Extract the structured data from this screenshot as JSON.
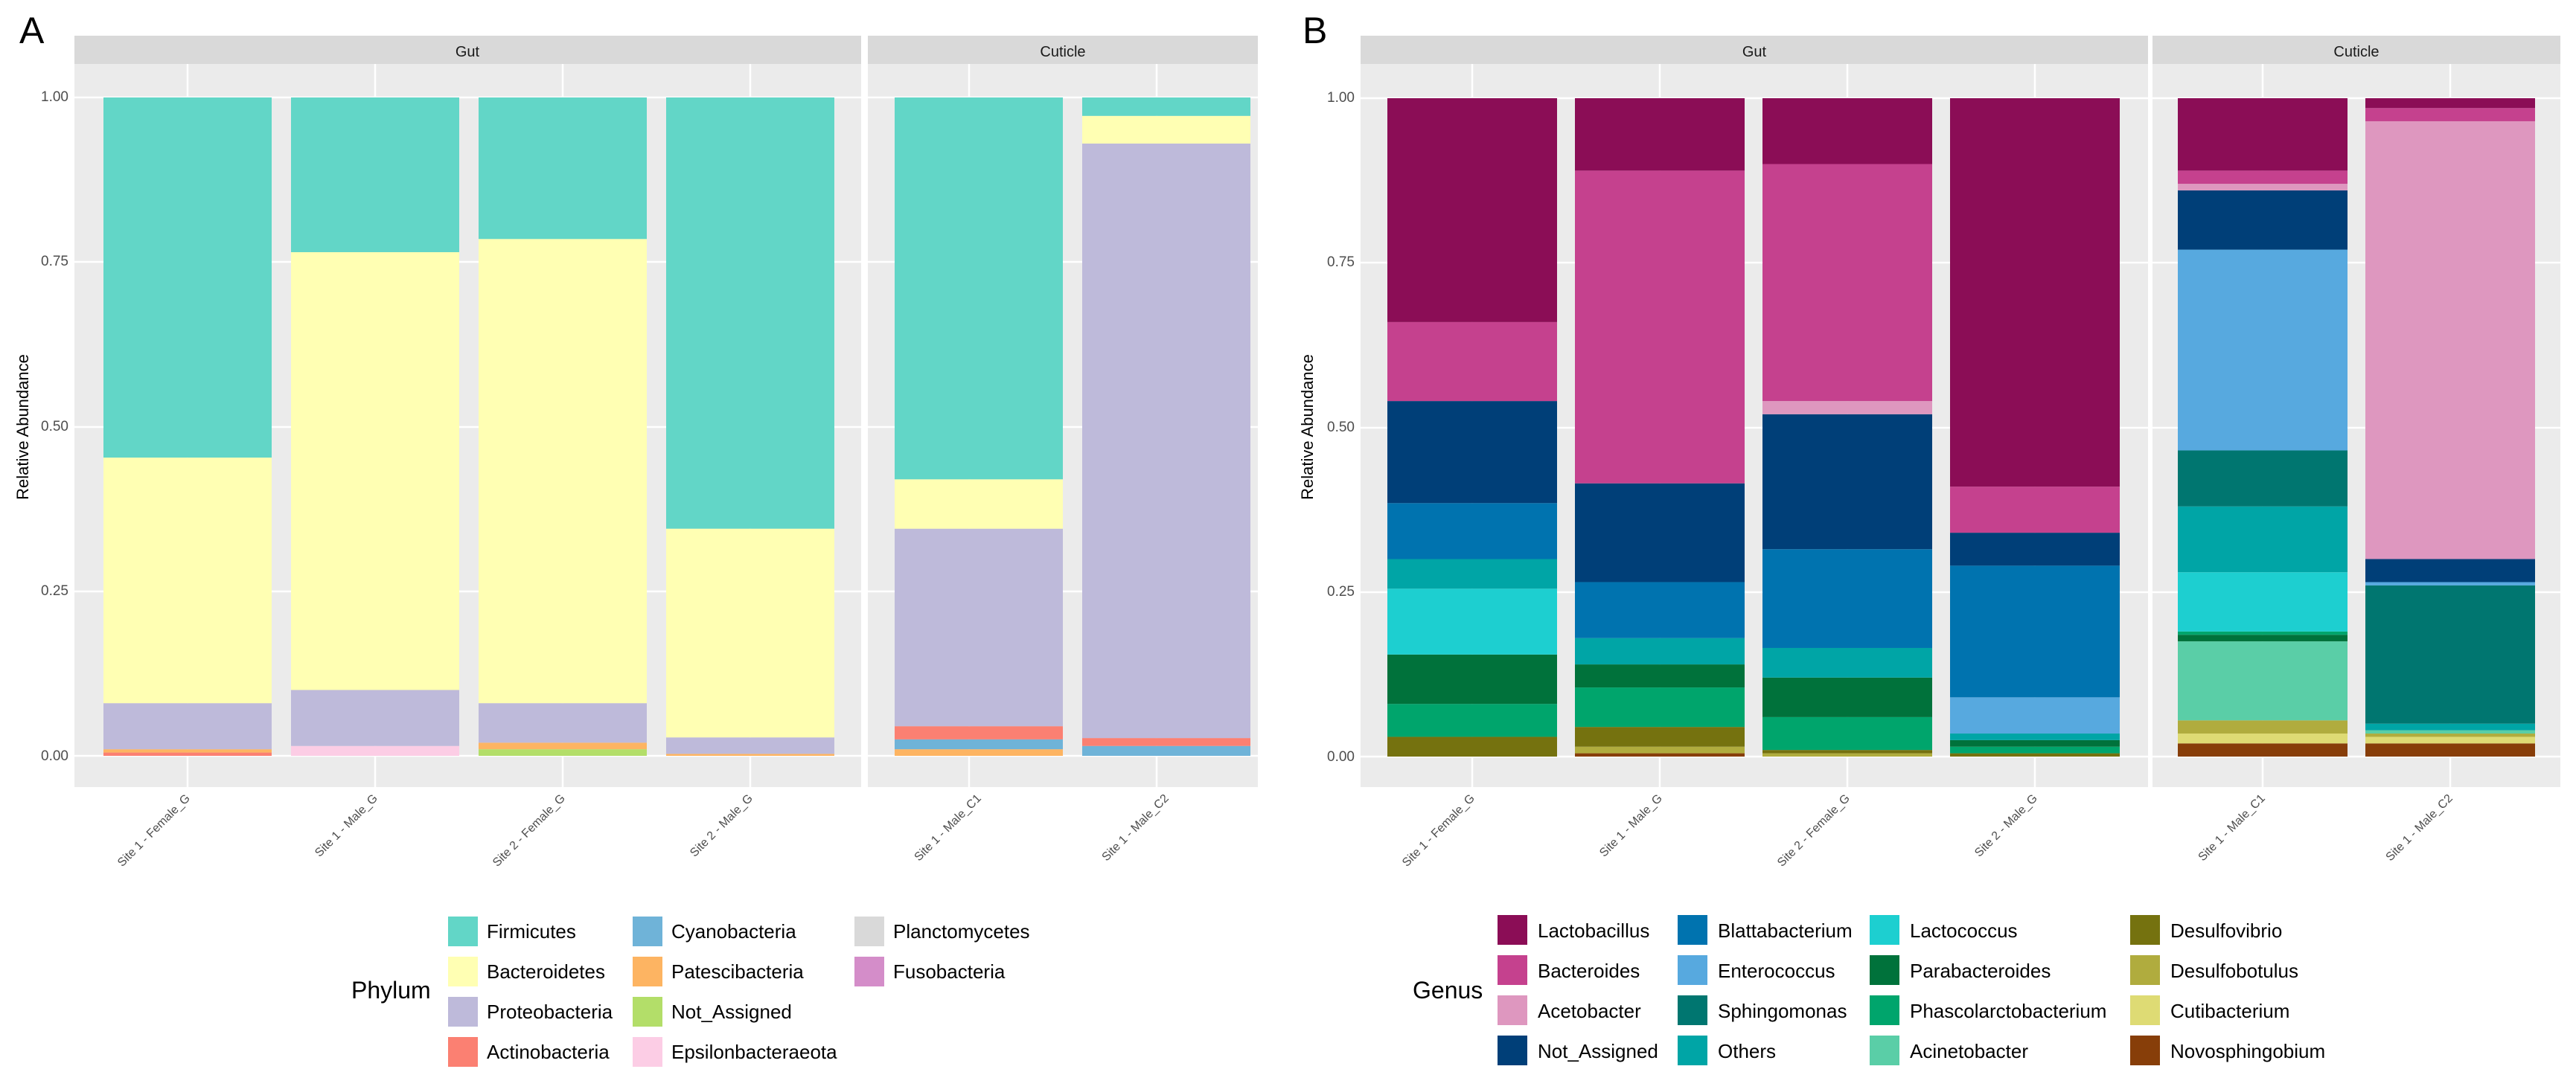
{
  "chart_data": [
    {
      "type": "bar",
      "stacked": true,
      "panel_label": "A",
      "ylabel": "Relative Abundance",
      "ylim": [
        0,
        1
      ],
      "yticks": [
        "0.00",
        "0.25",
        "0.50",
        "0.75",
        "1.00"
      ],
      "ytick_values": [
        0,
        0.25,
        0.5,
        0.75,
        1
      ],
      "legend_title": "Phylum",
      "legend": [
        "Firmicutes",
        "Bacteroidetes",
        "Proteobacteria",
        "Actinobacteria",
        "Cyanobacteria",
        "Patescibacteria",
        "Not_Assigned",
        "Epsilonbacteraeota",
        "Planctomycetes",
        "Fusobacteria"
      ],
      "colors": {
        "Firmicutes": "#62D6C7",
        "Bacteroidetes": "#FFFFB3",
        "Proteobacteria": "#BEBADA",
        "Actinobacteria": "#FB8072",
        "Cyanobacteria": "#6FB3D8",
        "Patescibacteria": "#FDB462",
        "Not_Assigned": "#B3DE69",
        "Epsilonbacteraeota": "#FCCDE5",
        "Planctomycetes": "#D9D9D9",
        "Fusobacteria": "#D48DC9"
      },
      "facets": [
        {
          "label": "Gut",
          "bars": [
            {
              "label": "Site 1 - Female_G",
              "segments": [
                {
                  "name": "Actinobacteria",
                  "value": 0.005
                },
                {
                  "name": "Patescibacteria",
                  "value": 0.005
                },
                {
                  "name": "Proteobacteria",
                  "value": 0.07
                },
                {
                  "name": "Bacteroidetes",
                  "value": 0.373
                },
                {
                  "name": "Firmicutes",
                  "value": 0.547
                }
              ]
            },
            {
              "label": "Site 1 - Male_G",
              "segments": [
                {
                  "name": "Epsilonbacteraeota",
                  "value": 0.015
                },
                {
                  "name": "Proteobacteria",
                  "value": 0.085
                },
                {
                  "name": "Bacteroidetes",
                  "value": 0.665
                },
                {
                  "name": "Firmicutes",
                  "value": 0.235
                }
              ]
            },
            {
              "label": "Site 2 - Female_G",
              "segments": [
                {
                  "name": "Not_Assigned",
                  "value": 0.01
                },
                {
                  "name": "Patescibacteria",
                  "value": 0.01
                },
                {
                  "name": "Proteobacteria",
                  "value": 0.06
                },
                {
                  "name": "Bacteroidetes",
                  "value": 0.705
                },
                {
                  "name": "Firmicutes",
                  "value": 0.215
                }
              ]
            },
            {
              "label": "Site 2 - Male_G",
              "segments": [
                {
                  "name": "Patescibacteria",
                  "value": 0.003
                },
                {
                  "name": "Proteobacteria",
                  "value": 0.025
                },
                {
                  "name": "Bacteroidetes",
                  "value": 0.317
                },
                {
                  "name": "Firmicutes",
                  "value": 0.655
                }
              ]
            }
          ]
        },
        {
          "label": "Cuticle",
          "bars": [
            {
              "label": "Site 1 - Male_C1",
              "segments": [
                {
                  "name": "Patescibacteria",
                  "value": 0.01
                },
                {
                  "name": "Cyanobacteria",
                  "value": 0.015
                },
                {
                  "name": "Actinobacteria",
                  "value": 0.02
                },
                {
                  "name": "Proteobacteria",
                  "value": 0.3
                },
                {
                  "name": "Bacteroidetes",
                  "value": 0.075
                },
                {
                  "name": "Firmicutes",
                  "value": 0.58
                }
              ]
            },
            {
              "label": "Site 1 - Male_C2",
              "segments": [
                {
                  "name": "Cyanobacteria",
                  "value": 0.015
                },
                {
                  "name": "Actinobacteria",
                  "value": 0.012
                },
                {
                  "name": "Proteobacteria",
                  "value": 0.903
                },
                {
                  "name": "Bacteroidetes",
                  "value": 0.042
                },
                {
                  "name": "Firmicutes",
                  "value": 0.028
                }
              ]
            }
          ]
        }
      ]
    },
    {
      "type": "bar",
      "stacked": true,
      "panel_label": "B",
      "ylabel": "Relative Abundance",
      "ylim": [
        0,
        1
      ],
      "yticks": [
        "0.00",
        "0.25",
        "0.50",
        "0.75",
        "1.00"
      ],
      "ytick_values": [
        0,
        0.25,
        0.5,
        0.75,
        1
      ],
      "legend_title": "Genus",
      "legend": [
        "Lactobacillus",
        "Bacteroides",
        "Acetobacter",
        "Not_Assigned",
        "Blattabacterium",
        "Enterococcus",
        "Sphingomonas",
        "Others",
        "Lactococcus",
        "Parabacteroides",
        "Phascolarctobacterium",
        "Acinetobacter",
        "Desulfovibrio",
        "Desulfobotulus",
        "Cutibacterium",
        "Novosphingobium"
      ],
      "colors": {
        "Lactobacillus": "#8B0D56",
        "Bacteroides": "#C5418E",
        "Acetobacter": "#DE97BF",
        "Not_Assigned": "#003F78",
        "Blattabacterium": "#0073AF",
        "Enterococcus": "#57A9DF",
        "Sphingomonas": "#007670",
        "Others": "#00A5A6",
        "Lactococcus": "#1DCFD0",
        "Parabacteroides": "#00723B",
        "Phascolarctobacterium": "#00A56C",
        "Acinetobacter": "#5ACEA7",
        "Desulfovibrio": "#75720F",
        "Desulfobotulus": "#B0AC3E",
        "Cutibacterium": "#DEDB74",
        "Novosphingobium": "#873E09"
      },
      "facets": [
        {
          "label": "Gut",
          "bars": [
            {
              "label": "Site 1 - Female_G",
              "segments": [
                {
                  "name": "Desulfovibrio",
                  "value": 0.03
                },
                {
                  "name": "Phascolarctobacterium",
                  "value": 0.05
                },
                {
                  "name": "Parabacteroides",
                  "value": 0.075
                },
                {
                  "name": "Lactococcus",
                  "value": 0.1
                },
                {
                  "name": "Others",
                  "value": 0.045
                },
                {
                  "name": "Blattabacterium",
                  "value": 0.085
                },
                {
                  "name": "Not_Assigned",
                  "value": 0.155
                },
                {
                  "name": "Bacteroides",
                  "value": 0.12
                },
                {
                  "name": "Lactobacillus",
                  "value": 0.34
                }
              ]
            },
            {
              "label": "Site 1 - Male_G",
              "segments": [
                {
                  "name": "Novosphingobium",
                  "value": 0.005
                },
                {
                  "name": "Desulfobotulus",
                  "value": 0.01
                },
                {
                  "name": "Desulfovibrio",
                  "value": 0.03
                },
                {
                  "name": "Phascolarctobacterium",
                  "value": 0.06
                },
                {
                  "name": "Parabacteroides",
                  "value": 0.035
                },
                {
                  "name": "Others",
                  "value": 0.04
                },
                {
                  "name": "Blattabacterium",
                  "value": 0.085
                },
                {
                  "name": "Not_Assigned",
                  "value": 0.15
                },
                {
                  "name": "Bacteroides",
                  "value": 0.475
                },
                {
                  "name": "Lactobacillus",
                  "value": 0.11
                }
              ]
            },
            {
              "label": "Site 2 - Female_G",
              "segments": [
                {
                  "name": "Desulfobotulus",
                  "value": 0.005
                },
                {
                  "name": "Desulfovibrio",
                  "value": 0.005
                },
                {
                  "name": "Phascolarctobacterium",
                  "value": 0.05
                },
                {
                  "name": "Parabacteroides",
                  "value": 0.06
                },
                {
                  "name": "Others",
                  "value": 0.045
                },
                {
                  "name": "Blattabacterium",
                  "value": 0.15
                },
                {
                  "name": "Not_Assigned",
                  "value": 0.205
                },
                {
                  "name": "Acetobacter",
                  "value": 0.02
                },
                {
                  "name": "Bacteroides",
                  "value": 0.36
                },
                {
                  "name": "Lactobacillus",
                  "value": 0.1
                }
              ]
            },
            {
              "label": "Site 2 - Male_G",
              "segments": [
                {
                  "name": "Desulfovibrio",
                  "value": 0.005
                },
                {
                  "name": "Phascolarctobacterium",
                  "value": 0.01
                },
                {
                  "name": "Parabacteroides",
                  "value": 0.01
                },
                {
                  "name": "Others",
                  "value": 0.01
                },
                {
                  "name": "Enterococcus",
                  "value": 0.055
                },
                {
                  "name": "Blattabacterium",
                  "value": 0.2
                },
                {
                  "name": "Not_Assigned",
                  "value": 0.05
                },
                {
                  "name": "Bacteroides",
                  "value": 0.07
                },
                {
                  "name": "Lactobacillus",
                  "value": 0.59
                }
              ]
            }
          ]
        },
        {
          "label": "Cuticle",
          "bars": [
            {
              "label": "Site 1 - Male_C1",
              "segments": [
                {
                  "name": "Novosphingobium",
                  "value": 0.02
                },
                {
                  "name": "Cutibacterium",
                  "value": 0.015
                },
                {
                  "name": "Desulfobotulus",
                  "value": 0.02
                },
                {
                  "name": "Acinetobacter",
                  "value": 0.12
                },
                {
                  "name": "Parabacteroides",
                  "value": 0.01
                },
                {
                  "name": "Phascolarctobacterium",
                  "value": 0.005
                },
                {
                  "name": "Lactococcus",
                  "value": 0.09
                },
                {
                  "name": "Others",
                  "value": 0.1
                },
                {
                  "name": "Sphingomonas",
                  "value": 0.085
                },
                {
                  "name": "Enterococcus",
                  "value": 0.305
                },
                {
                  "name": "Not_Assigned",
                  "value": 0.09
                },
                {
                  "name": "Acetobacter",
                  "value": 0.01
                },
                {
                  "name": "Bacteroides",
                  "value": 0.02
                },
                {
                  "name": "Lactobacillus",
                  "value": 0.11
                }
              ]
            },
            {
              "label": "Site 1 - Male_C2",
              "segments": [
                {
                  "name": "Novosphingobium",
                  "value": 0.02
                },
                {
                  "name": "Cutibacterium",
                  "value": 0.01
                },
                {
                  "name": "Desulfobotulus",
                  "value": 0.005
                },
                {
                  "name": "Acinetobacter",
                  "value": 0.005
                },
                {
                  "name": "Others",
                  "value": 0.01
                },
                {
                  "name": "Sphingomonas",
                  "value": 0.21
                },
                {
                  "name": "Enterococcus",
                  "value": 0.005
                },
                {
                  "name": "Not_Assigned",
                  "value": 0.035
                },
                {
                  "name": "Acetobacter",
                  "value": 0.665
                },
                {
                  "name": "Bacteroides",
                  "value": 0.02
                },
                {
                  "name": "Lactobacillus",
                  "value": 0.015
                }
              ]
            }
          ]
        }
      ]
    }
  ]
}
